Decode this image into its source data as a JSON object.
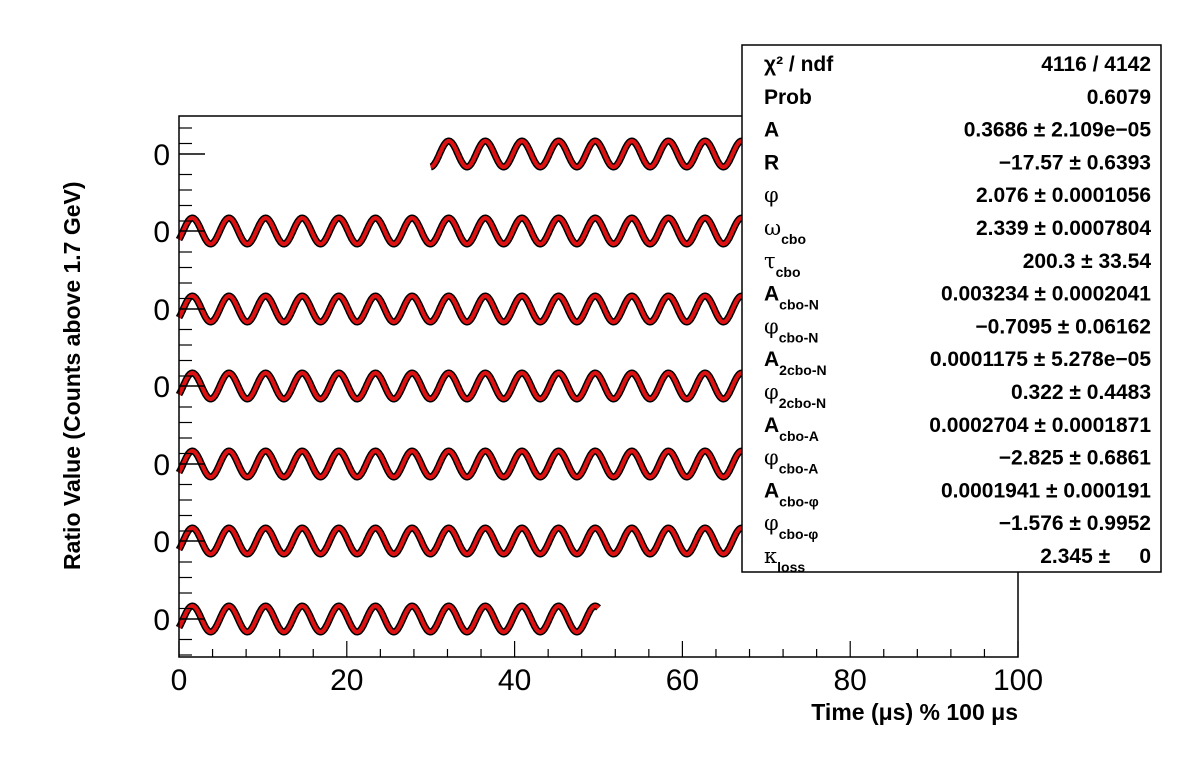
{
  "chart_data": {
    "type": "line",
    "title": "",
    "xlabel": "Time (μs) % 100 μs",
    "ylabel": "Ratio Value (Counts above 1.7 GeV)",
    "xlim": [
      0,
      100
    ],
    "x_ticks": [
      "0",
      "20",
      "40",
      "60",
      "80",
      "100"
    ],
    "rows": [
      {
        "y_tick": "0",
        "x_start": 30,
        "x_end": 100
      },
      {
        "y_tick": "0",
        "x_start": 0,
        "x_end": 100
      },
      {
        "y_tick": "0",
        "x_start": 0,
        "x_end": 100
      },
      {
        "y_tick": "0",
        "x_start": 0,
        "x_end": 100
      },
      {
        "y_tick": "0",
        "x_start": 0,
        "x_end": 100
      },
      {
        "y_tick": "0",
        "x_start": 0,
        "x_end": 100
      },
      {
        "y_tick": "0",
        "x_start": 0,
        "x_end": 50
      }
    ],
    "oscillation_period_us": 4.365,
    "data_color": "#000000",
    "fit_color": "#dd1111",
    "grid": false,
    "legend_position": "top-right",
    "stats": [
      {
        "name": "χ² / ndf",
        "sub": "",
        "greek": false,
        "value": "4116 / 4142"
      },
      {
        "name": "Prob",
        "sub": "",
        "greek": false,
        "value": "0.6079"
      },
      {
        "name": "A",
        "sub": "",
        "greek": false,
        "value": "0.3686 ± 2.109e−05"
      },
      {
        "name": "R",
        "sub": "",
        "greek": false,
        "value": "−17.57 ± 0.6393"
      },
      {
        "name": "φ",
        "sub": "",
        "greek": true,
        "value": "2.076 ± 0.0001056"
      },
      {
        "name": "ω",
        "sub": "cbo",
        "greek": true,
        "value": "2.339 ± 0.0007804"
      },
      {
        "name": "τ",
        "sub": "cbo",
        "greek": true,
        "value": "200.3 ± 33.54"
      },
      {
        "name": "A",
        "sub": "cbo-N",
        "greek": false,
        "value": "0.003234 ± 0.0002041"
      },
      {
        "name": "φ",
        "sub": "cbo-N",
        "greek": true,
        "value": "−0.7095 ± 0.06162"
      },
      {
        "name": "A",
        "sub": "2cbo-N",
        "greek": false,
        "value": "0.0001175 ± 5.278e−05"
      },
      {
        "name": "φ",
        "sub": "2cbo-N",
        "greek": true,
        "value": "0.322 ± 0.4483"
      },
      {
        "name": "A",
        "sub": "cbo-A",
        "greek": false,
        "value": "0.0002704 ± 0.0001871"
      },
      {
        "name": "φ",
        "sub": "cbo-A",
        "greek": true,
        "value": "−2.825 ± 0.6861"
      },
      {
        "name": "A",
        "sub": "cbo-φ",
        "greek": false,
        "value": "0.0001941 ± 0.000191"
      },
      {
        "name": "φ",
        "sub": "cbo-φ",
        "greek": true,
        "value": "−1.576 ± 0.9952"
      },
      {
        "name": "κ",
        "sub": "loss",
        "greek": true,
        "value": "2.345 ±     0"
      }
    ]
  }
}
